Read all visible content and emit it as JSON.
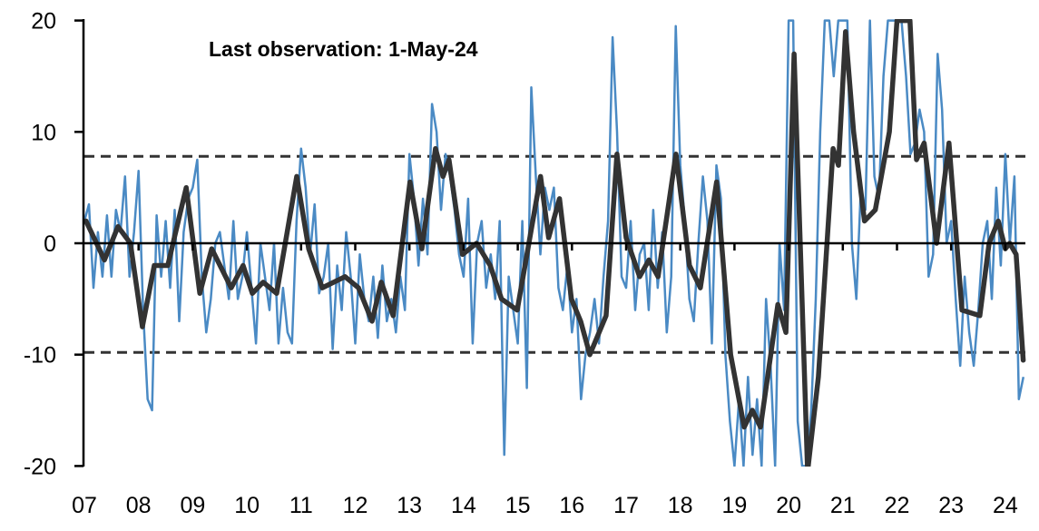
{
  "chart_data": {
    "type": "line",
    "title": "",
    "annotation": "Last observation: 1-May-24",
    "xlabel": "",
    "ylabel": "",
    "ylim": [
      -20,
      20
    ],
    "xlim": [
      "2007-01",
      "2024-05"
    ],
    "y_ticks": [
      "20",
      "10",
      "0",
      "-10",
      "-20"
    ],
    "y_tick_values": [
      20,
      10,
      0,
      -10,
      -20
    ],
    "x_ticks": [
      "07",
      "08",
      "09",
      "10",
      "11",
      "12",
      "13",
      "14",
      "15",
      "16",
      "17",
      "18",
      "19",
      "20",
      "21",
      "22",
      "23",
      "24"
    ],
    "grid": false,
    "legend": "none",
    "reference_lines": [
      {
        "value": 7.8,
        "style": "dashed",
        "color": "#333333"
      },
      {
        "value": -9.8,
        "style": "dashed",
        "color": "#333333"
      },
      {
        "value": 0,
        "style": "solid",
        "color": "#000000"
      }
    ],
    "series": [
      {
        "color": "#4a8ac4",
        "frequency": "monthly",
        "start": "2007-01",
        "values": [
          2,
          3.5,
          -4,
          1,
          -3,
          2.5,
          -3,
          3,
          1,
          6,
          -3,
          1,
          6.5,
          -6,
          -14,
          -15,
          2.5,
          -3,
          2,
          -4,
          3,
          -7,
          1,
          4,
          5,
          7.5,
          -3,
          -8,
          -5,
          0,
          1,
          -2,
          -5,
          2,
          -5,
          -3,
          1,
          -4,
          -9,
          0,
          -3,
          -6,
          0,
          -9,
          -4,
          -8,
          -9,
          2,
          8.5,
          5,
          -1,
          3.5,
          -4.5,
          -3,
          0,
          -9.5,
          -2,
          -6,
          1,
          -3,
          -9,
          -1,
          -5,
          -7,
          -3,
          -8.5,
          -2,
          -7,
          -5,
          -8,
          -3,
          -6,
          8,
          4,
          -2,
          4,
          -1,
          12.5,
          10,
          3,
          8,
          6,
          3,
          -1,
          -3,
          4,
          -9,
          0,
          2,
          -4,
          -1,
          -5,
          2,
          -19,
          -3,
          -6,
          -9,
          2,
          -13,
          14,
          6,
          -1,
          5,
          3,
          5,
          -4,
          -6,
          -2,
          -8,
          -5,
          -14,
          -10,
          -8,
          -5,
          -9,
          -3,
          2,
          18.5,
          10,
          -3,
          -4,
          2,
          -6,
          -1,
          0,
          -6,
          3,
          -4,
          1,
          -8,
          -3,
          19.5,
          7,
          2,
          -5,
          -7,
          0,
          6,
          2,
          -9,
          7,
          4,
          -10,
          -16,
          -20,
          -14,
          -20,
          -12,
          -19,
          -14,
          -20,
          -5,
          -11,
          -20,
          0,
          -6,
          20,
          20,
          -16,
          -20,
          -20,
          -15,
          -5,
          10,
          20,
          20,
          15,
          20,
          20,
          20,
          0,
          -5,
          5,
          3,
          20,
          6,
          4,
          15,
          20,
          20,
          20,
          20,
          15,
          8,
          9,
          12,
          10,
          -3,
          -1,
          17,
          12,
          0,
          2,
          -5,
          -11,
          -3,
          -8,
          -11,
          -6,
          0,
          2,
          -5,
          5,
          -2,
          8,
          0,
          6,
          -14,
          -12
        ]
      },
      {
        "color": "#333333",
        "points": [
          [
            2007.03,
            2
          ],
          [
            2007.37,
            -1.5
          ],
          [
            2007.62,
            1.5
          ],
          [
            2007.85,
            0
          ],
          [
            2008.07,
            -7.5
          ],
          [
            2008.29,
            -2
          ],
          [
            2008.54,
            -2
          ],
          [
            2008.88,
            5
          ],
          [
            2009.13,
            -4.5
          ],
          [
            2009.35,
            -0.5
          ],
          [
            2009.71,
            -4
          ],
          [
            2009.93,
            -2
          ],
          [
            2010.1,
            -4.5
          ],
          [
            2010.3,
            -3.5
          ],
          [
            2010.55,
            -4.5
          ],
          [
            2010.92,
            6
          ],
          [
            2011.14,
            -0.5
          ],
          [
            2011.39,
            -4
          ],
          [
            2011.81,
            -3
          ],
          [
            2012.06,
            -4
          ],
          [
            2012.31,
            -7
          ],
          [
            2012.48,
            -3.5
          ],
          [
            2012.7,
            -6.5
          ],
          [
            2013.01,
            5.5
          ],
          [
            2013.23,
            -0.5
          ],
          [
            2013.48,
            8.5
          ],
          [
            2013.62,
            6
          ],
          [
            2013.73,
            7.5
          ],
          [
            2013.98,
            -1
          ],
          [
            2014.24,
            0
          ],
          [
            2014.49,
            -2
          ],
          [
            2014.7,
            -5
          ],
          [
            2014.99,
            -6
          ],
          [
            2015.42,
            6
          ],
          [
            2015.57,
            0.5
          ],
          [
            2015.77,
            4
          ],
          [
            2015.99,
            -5
          ],
          [
            2016.16,
            -7
          ],
          [
            2016.33,
            -10
          ],
          [
            2016.63,
            -6.5
          ],
          [
            2016.83,
            8
          ],
          [
            2017.0,
            0.5
          ],
          [
            2017.25,
            -3
          ],
          [
            2017.42,
            -1.5
          ],
          [
            2017.59,
            -3
          ],
          [
            2017.92,
            8
          ],
          [
            2018.17,
            -2
          ],
          [
            2018.37,
            -4
          ],
          [
            2018.67,
            5.5
          ],
          [
            2018.93,
            -10
          ],
          [
            2019.18,
            -16.5
          ],
          [
            2019.33,
            -15
          ],
          [
            2019.48,
            -16.5
          ],
          [
            2019.8,
            -5.5
          ],
          [
            2019.95,
            -8
          ],
          [
            2020.1,
            17
          ],
          [
            2020.35,
            -20.5
          ],
          [
            2020.55,
            -12
          ],
          [
            2020.82,
            8.5
          ],
          [
            2020.92,
            7
          ],
          [
            2021.05,
            19
          ],
          [
            2021.2,
            10
          ],
          [
            2021.4,
            2
          ],
          [
            2021.6,
            3
          ],
          [
            2021.86,
            10
          ],
          [
            2022.0,
            20
          ],
          [
            2022.24,
            20
          ],
          [
            2022.36,
            7.5
          ],
          [
            2022.5,
            9
          ],
          [
            2022.73,
            0
          ],
          [
            2022.96,
            9
          ],
          [
            2023.2,
            -6
          ],
          [
            2023.53,
            -6.5
          ],
          [
            2023.7,
            0
          ],
          [
            2023.87,
            2
          ],
          [
            2024.0,
            -0.5
          ],
          [
            2024.08,
            0
          ],
          [
            2024.2,
            -1
          ],
          [
            2024.33,
            -10.5
          ]
        ]
      }
    ]
  }
}
